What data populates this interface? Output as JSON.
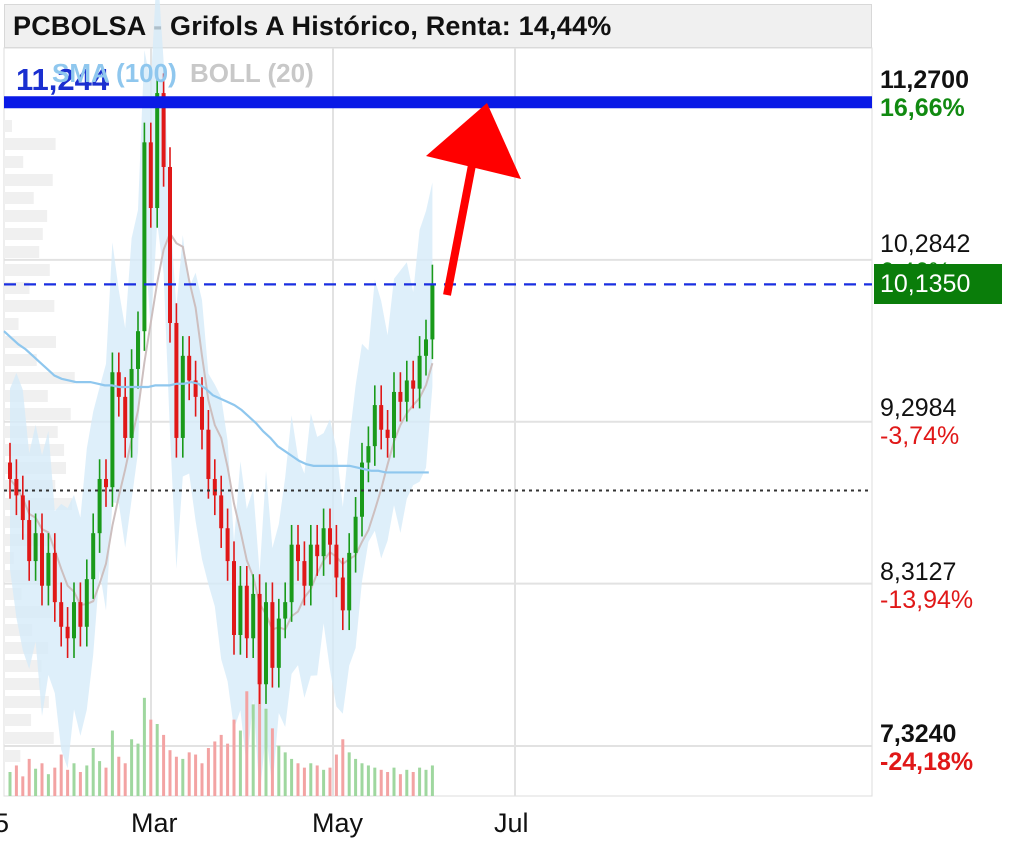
{
  "title": "PCBOLSA - Grifols A Histórico, Renta: 14,44%",
  "legend": {
    "sma": "SMA (100)",
    "boll": "BOLL (20)"
  },
  "reference_line_label": "11,244",
  "colors": {
    "up": "#1a9a1a",
    "down": "#e01818",
    "reference_line": "#0a1ae6",
    "current_line": "#1a2fe0",
    "bollinger_band": "#d6ebf9",
    "sma": "#8fc7ee",
    "arrow": "#ff0000",
    "positive_pct": "#118a11",
    "negative_pct": "#e01818"
  },
  "right_axis": [
    {
      "price": "11,2700",
      "pct": "16,66%",
      "sign": "pos",
      "bold": true
    },
    {
      "price": "10,2842",
      "pct": "6,46%",
      "sign": "pos",
      "bold": false
    },
    {
      "price": "9,2984",
      "pct": "-3,74%",
      "sign": "neg",
      "bold": false
    },
    {
      "price": "8,3127",
      "pct": "-13,94%",
      "sign": "neg",
      "bold": false
    },
    {
      "price": "7,3240",
      "pct": "-24,18%",
      "sign": "neg",
      "bold": true
    }
  ],
  "current_price": "10,1350",
  "x_ticks": [
    "5",
    "Mar",
    "May",
    "Jul"
  ],
  "chart_data": {
    "type": "candlestick",
    "title": "PCBOLSA - Grifols A Histórico, Renta: 14,44%",
    "ylim": [
      7.324,
      11.27
    ],
    "reference_levels": [
      {
        "label": "11,244",
        "value": 11.244,
        "style": "solid"
      },
      {
        "label": "10,1350",
        "value": 10.135,
        "style": "dashed"
      },
      {
        "value": 8.88,
        "style": "dotted"
      }
    ],
    "x_ticks": [
      "5",
      "Mar",
      "May",
      "Jul"
    ],
    "close_series": [
      8.95,
      8.85,
      8.7,
      8.45,
      8.62,
      8.3,
      8.5,
      8.2,
      8.05,
      7.98,
      8.2,
      8.05,
      8.34,
      8.62,
      8.95,
      8.9,
      9.6,
      9.45,
      9.2,
      9.62,
      9.85,
      11.0,
      10.6,
      11.3,
      10.85,
      9.9,
      9.2,
      9.7,
      9.55,
      9.45,
      9.25,
      8.95,
      8.85,
      8.65,
      8.45,
      8.0,
      8.3,
      7.98,
      8.25,
      7.7,
      8.2,
      7.8,
      8.1,
      8.2,
      8.55,
      8.45,
      8.3,
      8.55,
      8.48,
      8.65,
      8.55,
      8.35,
      8.15,
      8.5,
      8.72,
      9.05,
      9.15,
      9.4,
      9.25,
      9.2,
      9.48,
      9.42,
      9.55,
      9.5,
      9.7,
      9.8,
      10.135
    ],
    "sma_100": [
      9.85,
      9.81,
      9.77,
      9.74,
      9.7,
      9.66,
      9.62,
      9.58,
      9.56,
      9.55,
      9.54,
      9.54,
      9.54,
      9.53,
      9.52,
      9.52,
      9.51,
      9.51,
      9.51,
      9.51,
      9.51,
      9.52,
      9.52,
      9.52,
      9.53,
      9.53,
      9.54,
      9.53,
      9.5,
      9.46,
      9.44,
      9.42,
      9.4,
      9.37,
      9.33,
      9.29,
      9.24,
      9.2,
      9.15,
      9.12,
      9.09,
      9.06,
      9.04,
      9.03,
      9.03,
      9.03,
      9.03,
      9.03,
      9.03,
      9.02,
      9.01,
      9.0,
      9.0,
      8.99,
      8.99,
      8.99,
      8.99,
      8.99,
      8.99,
      8.99
    ],
    "volume": [
      22,
      28,
      18,
      34,
      25,
      30,
      20,
      26,
      38,
      24,
      30,
      22,
      28,
      44,
      32,
      26,
      60,
      36,
      30,
      52,
      48,
      90,
      70,
      66,
      56,
      42,
      36,
      34,
      40,
      38,
      30,
      44,
      50,
      56,
      48,
      70,
      60,
      96,
      84,
      110,
      80,
      62,
      46,
      40,
      34,
      30,
      26,
      30,
      28,
      24,
      26,
      38,
      52,
      40,
      34,
      30,
      28,
      26,
      24,
      22,
      26,
      20,
      24,
      22,
      26,
      24,
      28
    ]
  }
}
